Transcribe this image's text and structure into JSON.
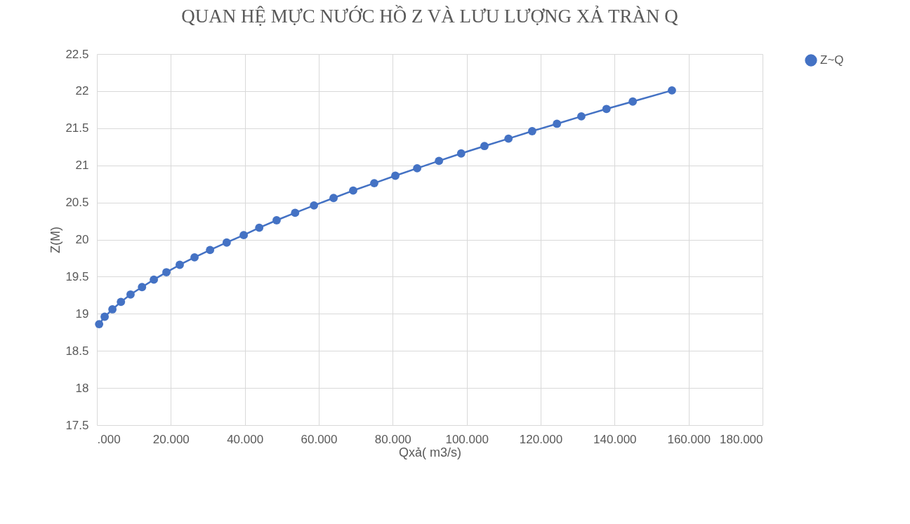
{
  "chart_data": {
    "type": "line",
    "title": "QUAN HỆ MỰC NƯỚC HỒ Z VÀ LƯU LƯỢNG XẢ TRÀN Q",
    "xlabel": "Qxả( m3/s)",
    "ylabel": "Z(M)",
    "xlim": [
      0,
      180
    ],
    "xticks": [
      {
        "value": 0,
        "label": ".000"
      },
      {
        "value": 20,
        "label": "20.000"
      },
      {
        "value": 40,
        "label": "40.000"
      },
      {
        "value": 60,
        "label": "60.000"
      },
      {
        "value": 80,
        "label": "80.000"
      },
      {
        "value": 100,
        "label": "100.000"
      },
      {
        "value": 120,
        "label": "120.000"
      },
      {
        "value": 140,
        "label": "140.000"
      },
      {
        "value": 160,
        "label": "160.000"
      },
      {
        "value": 180,
        "label": "180.000"
      }
    ],
    "ylim": [
      17.5,
      22.5
    ],
    "yticks": [
      17.5,
      18,
      18.5,
      19,
      19.5,
      20,
      20.5,
      21,
      21.5,
      22,
      22.5
    ],
    "grid": true,
    "legend": "right",
    "marker": "circle",
    "line_style": "solid",
    "series": [
      {
        "name": "Z~Q",
        "color": "#4472c4",
        "x": [
          0.6,
          2.1,
          4.2,
          6.5,
          9.1,
          12.2,
          15.4,
          18.8,
          22.4,
          26.4,
          30.6,
          35.1,
          39.7,
          43.9,
          48.6,
          53.6,
          58.7,
          64.0,
          69.3,
          75.0,
          80.7,
          86.6,
          92.5,
          98.5,
          104.8,
          111.3,
          117.7,
          124.4,
          131.0,
          137.8,
          144.9,
          155.5
        ],
        "values": [
          18.86,
          18.96,
          19.06,
          19.16,
          19.26,
          19.36,
          19.46,
          19.56,
          19.66,
          19.76,
          19.86,
          19.96,
          20.06,
          20.16,
          20.26,
          20.36,
          20.46,
          20.56,
          20.66,
          20.76,
          20.86,
          20.96,
          21.06,
          21.16,
          21.26,
          21.36,
          21.46,
          21.56,
          21.66,
          21.76,
          21.86,
          22.01
        ]
      }
    ]
  }
}
